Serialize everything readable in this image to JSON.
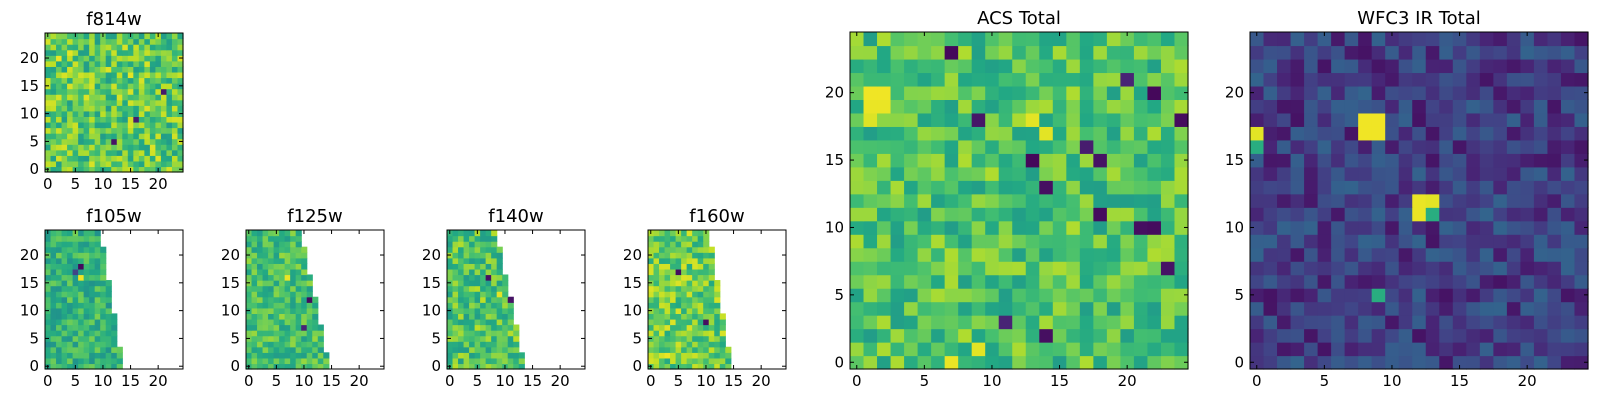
{
  "figure": {
    "background": "#ffffff",
    "colormap": "viridis"
  },
  "chart_data": [
    {
      "type": "heatmap",
      "id": "f814w",
      "title": "f814w",
      "grid_size": [
        25,
        25
      ],
      "xlim": [
        -0.5,
        24.5
      ],
      "ylim": [
        -0.5,
        24.5
      ],
      "xticks": [
        0,
        5,
        10,
        15,
        20
      ],
      "yticks": [
        0,
        5,
        10,
        15,
        20
      ],
      "valid_extent": "full",
      "value_range": [
        0.55,
        0.95
      ],
      "seed": 814,
      "hotspots": [
        {
          "x": 2,
          "y": 20,
          "value": 0.97
        },
        {
          "x": 15,
          "y": 17,
          "value": 0.96
        },
        {
          "x": 4,
          "y": 21,
          "value": 0.96
        },
        {
          "x": 12,
          "y": 5,
          "value": 0.05
        },
        {
          "x": 16,
          "y": 9,
          "value": 0.08
        },
        {
          "x": 21,
          "y": 14,
          "value": 0.07
        }
      ]
    },
    {
      "type": "heatmap",
      "id": "f105w",
      "title": "f105w",
      "grid_size": [
        25,
        25
      ],
      "xlim": [
        -0.5,
        24.5
      ],
      "ylim": [
        -0.5,
        24.5
      ],
      "xticks": [
        0,
        5,
        10,
        15,
        20
      ],
      "yticks": [
        0,
        5,
        10,
        15,
        20
      ],
      "valid_extent": {
        "x_at_bottom": 13,
        "x_at_top": 9
      },
      "value_range": [
        0.5,
        0.8
      ],
      "seed": 105,
      "hotspots": [
        {
          "x": 6,
          "y": 16,
          "value": 0.98
        },
        {
          "x": 6,
          "y": 18,
          "value": 0.02
        },
        {
          "x": 5,
          "y": 17,
          "value": 0.2
        }
      ]
    },
    {
      "type": "heatmap",
      "id": "f125w",
      "title": "f125w",
      "grid_size": [
        25,
        25
      ],
      "xlim": [
        -0.5,
        24.5
      ],
      "ylim": [
        -0.5,
        24.5
      ],
      "xticks": [
        0,
        5,
        10,
        15,
        20
      ],
      "yticks": [
        0,
        5,
        10,
        15,
        20
      ],
      "valid_extent": {
        "x_at_bottom": 14,
        "x_at_top": 9
      },
      "value_range": [
        0.55,
        0.85
      ],
      "seed": 125,
      "hotspots": [
        {
          "x": 11,
          "y": 12,
          "value": 0.03
        },
        {
          "x": 7,
          "y": 16,
          "value": 0.97
        },
        {
          "x": 10,
          "y": 7,
          "value": 0.1
        }
      ]
    },
    {
      "type": "heatmap",
      "id": "f140w",
      "title": "f140w",
      "grid_size": [
        25,
        25
      ],
      "xlim": [
        -0.5,
        24.5
      ],
      "ylim": [
        -0.5,
        24.5
      ],
      "xticks": [
        0,
        5,
        10,
        15,
        20
      ],
      "yticks": [
        0,
        5,
        10,
        15,
        20
      ],
      "valid_extent": {
        "x_at_bottom": 13,
        "x_at_top": 8
      },
      "value_range": [
        0.55,
        0.9
      ],
      "seed": 140,
      "hotspots": [
        {
          "x": 7,
          "y": 16,
          "value": 0.04
        },
        {
          "x": 9,
          "y": 13,
          "value": 0.96
        },
        {
          "x": 11,
          "y": 12,
          "value": 0.05
        }
      ]
    },
    {
      "type": "heatmap",
      "id": "f160w",
      "title": "f160w",
      "grid_size": [
        25,
        25
      ],
      "xlim": [
        -0.5,
        24.5
      ],
      "ylim": [
        -0.5,
        24.5
      ],
      "xticks": [
        0,
        5,
        10,
        15,
        20
      ],
      "yticks": [
        0,
        5,
        10,
        15,
        20
      ],
      "valid_extent": {
        "x_at_bottom": 14,
        "x_at_top": 10
      },
      "value_range": [
        0.6,
        0.95
      ],
      "seed": 160,
      "hotspots": [
        {
          "x": 5,
          "y": 17,
          "value": 0.03
        },
        {
          "x": 10,
          "y": 8,
          "value": 0.04
        },
        {
          "x": 3,
          "y": 2,
          "value": 0.97
        }
      ]
    },
    {
      "type": "heatmap",
      "id": "acs_total",
      "title": "ACS Total",
      "grid_size": [
        25,
        25
      ],
      "xlim": [
        -0.5,
        24.5
      ],
      "ylim": [
        -0.5,
        24.5
      ],
      "xticks": [
        0,
        5,
        10,
        15,
        20
      ],
      "yticks": [
        0,
        5,
        10,
        15,
        20
      ],
      "valid_extent": "full",
      "value_range": [
        0.55,
        0.88
      ],
      "seed": 900,
      "hotspots": [
        {
          "x": 1,
          "y": 20,
          "value": 0.98
        },
        {
          "x": 2,
          "y": 20,
          "value": 0.98
        },
        {
          "x": 1,
          "y": 19,
          "value": 0.97
        },
        {
          "x": 2,
          "y": 19,
          "value": 0.97
        },
        {
          "x": 1,
          "y": 18,
          "value": 0.95
        },
        {
          "x": 13,
          "y": 18,
          "value": 0.96
        },
        {
          "x": 14,
          "y": 17,
          "value": 0.96
        },
        {
          "x": 7,
          "y": 0,
          "value": 0.97
        },
        {
          "x": 9,
          "y": 1,
          "value": 0.96
        },
        {
          "x": 7,
          "y": 23,
          "value": 0.02
        },
        {
          "x": 13,
          "y": 15,
          "value": 0.02
        },
        {
          "x": 14,
          "y": 13,
          "value": 0.04
        },
        {
          "x": 18,
          "y": 11,
          "value": 0.03
        },
        {
          "x": 18,
          "y": 15,
          "value": 0.05
        },
        {
          "x": 22,
          "y": 10,
          "value": 0.03
        },
        {
          "x": 21,
          "y": 10,
          "value": 0.04
        },
        {
          "x": 22,
          "y": 20,
          "value": 0.02
        },
        {
          "x": 24,
          "y": 18,
          "value": 0.03
        },
        {
          "x": 23,
          "y": 7,
          "value": 0.05
        },
        {
          "x": 14,
          "y": 2,
          "value": 0.04
        },
        {
          "x": 9,
          "y": 18,
          "value": 0.06
        },
        {
          "x": 17,
          "y": 16,
          "value": 0.08
        },
        {
          "x": 11,
          "y": 3,
          "value": 0.1
        },
        {
          "x": 20,
          "y": 21,
          "value": 0.1
        }
      ]
    },
    {
      "type": "heatmap",
      "id": "wfc3_ir_total",
      "title": "WFC3 IR Total",
      "grid_size": [
        25,
        25
      ],
      "xlim": [
        -0.5,
        24.5
      ],
      "ylim": [
        -0.5,
        24.5
      ],
      "xticks": [
        0,
        5,
        10,
        15,
        20
      ],
      "yticks": [
        0,
        5,
        10,
        15,
        20
      ],
      "valid_extent": "full",
      "value_range": [
        0.05,
        0.32
      ],
      "seed": 333,
      "hotspots": [
        {
          "x": 8,
          "y": 17,
          "value": 0.98
        },
        {
          "x": 9,
          "y": 17,
          "value": 0.98
        },
        {
          "x": 8,
          "y": 18,
          "value": 0.98
        },
        {
          "x": 9,
          "y": 18,
          "value": 0.98
        },
        {
          "x": 12,
          "y": 11,
          "value": 0.97
        },
        {
          "x": 13,
          "y": 12,
          "value": 0.96
        },
        {
          "x": 12,
          "y": 12,
          "value": 0.97
        },
        {
          "x": 13,
          "y": 11,
          "value": 0.62
        },
        {
          "x": 0,
          "y": 17,
          "value": 0.96
        },
        {
          "x": 0,
          "y": 16,
          "value": 0.62
        },
        {
          "x": 9,
          "y": 5,
          "value": 0.62
        }
      ]
    }
  ]
}
